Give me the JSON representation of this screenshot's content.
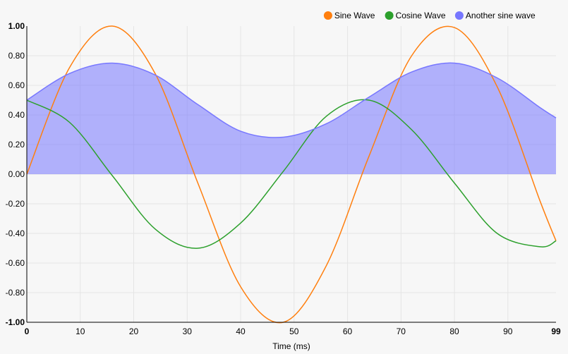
{
  "chart_data": {
    "type": "line",
    "title": "",
    "xlabel": "Time (ms)",
    "ylabel": "",
    "xlim": [
      0,
      99
    ],
    "ylim": [
      -1,
      1
    ],
    "x_ticks": [
      "0",
      "10",
      "20",
      "30",
      "40",
      "50",
      "60",
      "70",
      "80",
      "90",
      "99"
    ],
    "y_ticks": [
      "1.00",
      "0.80",
      "0.60",
      "0.40",
      "0.20",
      "0.00",
      "-0.20",
      "-0.40",
      "-0.60",
      "-0.80",
      "-1.00"
    ],
    "grid": true,
    "legend_position": "top-right",
    "series": [
      {
        "name": "Sine Wave",
        "color": "#ff7f0e",
        "area": false,
        "x": [
          0,
          8,
          16,
          24,
          32,
          40,
          48,
          56,
          64,
          72,
          80,
          88,
          96,
          99
        ],
        "y": [
          0.0,
          0.72,
          1.0,
          0.68,
          -0.06,
          -0.76,
          -1.0,
          -0.62,
          0.12,
          0.8,
          0.99,
          0.59,
          -0.18,
          -0.45
        ]
      },
      {
        "name": "Cosine Wave",
        "color": "#2ca02c",
        "area": false,
        "x": [
          0,
          8,
          16,
          24,
          32,
          40,
          48,
          56,
          64,
          72,
          80,
          88,
          96,
          99
        ],
        "y": [
          0.5,
          0.35,
          -0.01,
          -0.37,
          -0.5,
          -0.33,
          0.02,
          0.39,
          0.5,
          0.3,
          -0.06,
          -0.4,
          -0.49,
          -0.45
        ]
      },
      {
        "name": "Another sine wave",
        "color": "#7777ff",
        "area": true,
        "x": [
          0,
          8,
          16,
          24,
          32,
          40,
          48,
          56,
          64,
          72,
          80,
          88,
          96,
          99
        ],
        "y": [
          0.5,
          0.68,
          0.75,
          0.67,
          0.47,
          0.29,
          0.25,
          0.34,
          0.52,
          0.69,
          0.75,
          0.65,
          0.45,
          0.38
        ]
      }
    ]
  }
}
